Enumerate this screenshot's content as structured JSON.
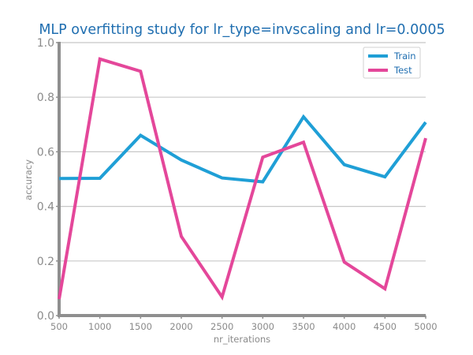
{
  "chart_data": {
    "type": "line",
    "title": "MLP overfitting study for lr_type=invscaling and lr=0.0005",
    "xlabel": "nr_iterations",
    "ylabel": "accuracy",
    "x": [
      500,
      1000,
      1500,
      2000,
      2500,
      3000,
      3500,
      4000,
      4500,
      5000
    ],
    "x_ticks": [
      "500",
      "1000",
      "1500",
      "2000",
      "2500",
      "3000",
      "3500",
      "4000",
      "4500",
      "5000"
    ],
    "y_ticks": [
      "0.0",
      "0.2",
      "0.4",
      "0.6",
      "0.8",
      "1.0"
    ],
    "xlim": [
      500,
      5000
    ],
    "ylim": [
      0,
      1
    ],
    "grid": "horizontal",
    "legend_position": "top-right",
    "series": [
      {
        "name": "Train",
        "color": "#1f9fd6",
        "values": [
          0.502,
          0.503,
          0.66,
          0.57,
          0.504,
          0.49,
          0.728,
          0.553,
          0.508,
          0.708
        ]
      },
      {
        "name": "Test",
        "color": "#e4479a",
        "values": [
          0.06,
          0.94,
          0.895,
          0.29,
          0.068,
          0.58,
          0.635,
          0.196,
          0.098,
          0.65
        ]
      }
    ]
  }
}
